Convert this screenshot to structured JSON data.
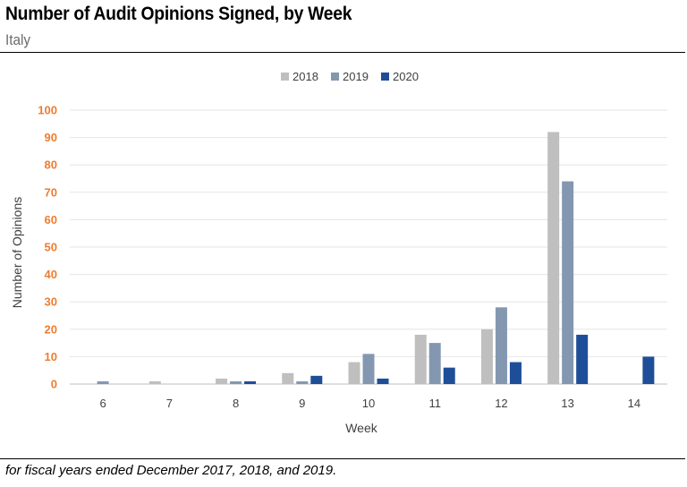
{
  "header": {
    "title": "Number of Audit Opinions Signed, by Week",
    "subtitle": "Italy"
  },
  "footnote": "for fiscal years ended December 2017, 2018, and 2019.",
  "chart_data": {
    "type": "bar",
    "title": "Number of Audit Opinions Signed, by Week",
    "subtitle": "Italy",
    "xlabel": "Week",
    "ylabel": "Number of Opinions",
    "categories": [
      "6",
      "7",
      "8",
      "9",
      "10",
      "11",
      "12",
      "13",
      "14"
    ],
    "ylim": [
      0,
      100
    ],
    "yticks": [
      0,
      10,
      20,
      30,
      40,
      50,
      60,
      70,
      80,
      90,
      100
    ],
    "grid": true,
    "legend_position": "top-center",
    "ytick_color": "#ED7D31",
    "series": [
      {
        "name": "2018",
        "color": "#BFBFBF",
        "values": [
          0,
          1,
          2,
          4,
          8,
          18,
          20,
          92,
          0
        ]
      },
      {
        "name": "2019",
        "color": "#8497B0",
        "values": [
          1,
          0,
          1,
          1,
          11,
          15,
          28,
          74,
          0
        ]
      },
      {
        "name": "2020",
        "color": "#1F4E99",
        "values": [
          0,
          0,
          1,
          3,
          2,
          6,
          8,
          18,
          10
        ]
      }
    ]
  }
}
